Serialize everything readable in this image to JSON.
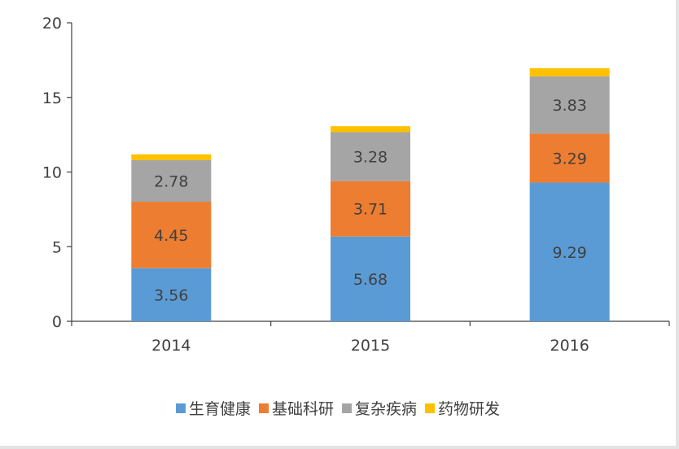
{
  "chart_data": {
    "type": "bar",
    "stacked": true,
    "categories": [
      "2014",
      "2015",
      "2016"
    ],
    "series": [
      {
        "name": "生育健康",
        "color": "#5b9bd5",
        "values": [
          3.56,
          5.68,
          9.29
        ]
      },
      {
        "name": "基础科研",
        "color": "#ed7d31",
        "values": [
          4.45,
          3.71,
          3.29
        ]
      },
      {
        "name": "复杂疾病",
        "color": "#a5a5a5",
        "values": [
          2.78,
          3.28,
          3.83
        ]
      },
      {
        "name": "药物研发",
        "color": "#ffc000",
        "values": [
          0.4,
          0.4,
          0.55
        ]
      }
    ],
    "data_labels_shown_for": [
      "生育健康",
      "基础科研",
      "复杂疾病"
    ],
    "ylim": [
      0,
      20
    ],
    "yticks": [
      0,
      5,
      10,
      15,
      20
    ],
    "grid": false,
    "legend_position": "bottom",
    "title": "",
    "xlabel": "",
    "ylabel": ""
  }
}
